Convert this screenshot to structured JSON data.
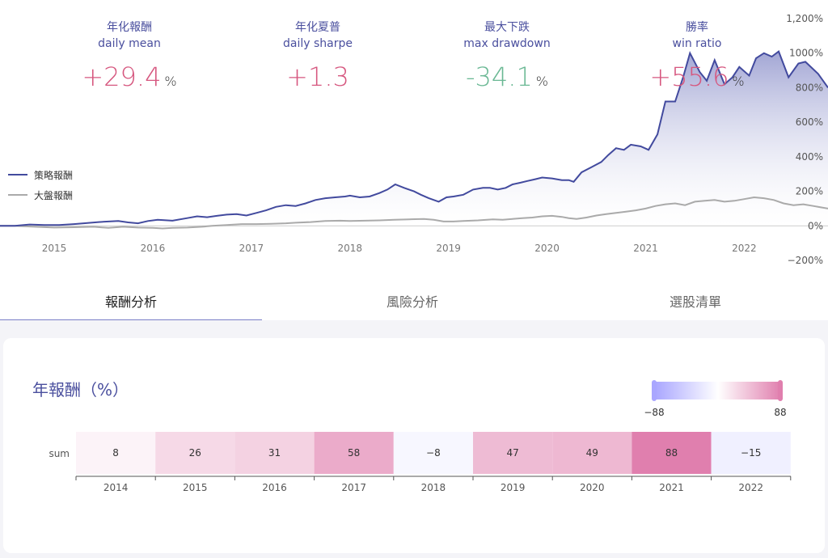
{
  "stats": [
    {
      "title": "年化報酬",
      "subtitle": "daily mean",
      "value": "+29.4",
      "unit": "%",
      "color": "#d6577f"
    },
    {
      "title": "年化夏普",
      "subtitle": "daily sharpe",
      "value": "+1.3",
      "unit": "",
      "color": "#d6577f"
    },
    {
      "title": "最大下跌",
      "subtitle": "max drawdown",
      "value": "-34.1",
      "unit": "%",
      "color": "#6ab894"
    },
    {
      "title": "勝率",
      "subtitle": "win ratio",
      "value": "+55.6",
      "unit": "%",
      "color": "#d6577f"
    }
  ],
  "tabs": [
    {
      "label": "報酬分析",
      "active": true
    },
    {
      "label": "風險分析",
      "active": false
    },
    {
      "label": "選股清單",
      "active": false
    }
  ],
  "heatmap_title": "年報酬（%）",
  "chart_data": [
    {
      "type": "line",
      "legend": [
        "策略報酬",
        "大盤報酬"
      ],
      "legend_position": "left",
      "y_ticks": [
        "1,200%",
        "1000%",
        "800%",
        "600%",
        "400%",
        "200%",
        "0%",
        "−200%"
      ],
      "x_ticks": [
        "2015",
        "2016",
        "2017",
        "2018",
        "2019",
        "2020",
        "2021",
        "2022"
      ],
      "ylim": [
        -200,
        1200
      ],
      "xlim": [
        2014.45,
        2022.85
      ],
      "series": [
        {
          "name": "策略報酬",
          "color": "#424a9e",
          "x": [
            2014.45,
            2014.6,
            2014.75,
            2014.9,
            2015.05,
            2015.2,
            2015.3,
            2015.45,
            2015.55,
            2015.65,
            2015.75,
            2015.85,
            2015.95,
            2016.05,
            2016.2,
            2016.35,
            2016.45,
            2016.55,
            2016.65,
            2016.75,
            2016.85,
            2016.95,
            2017.05,
            2017.15,
            2017.25,
            2017.35,
            2017.45,
            2017.55,
            2017.65,
            2017.75,
            2017.85,
            2017.95,
            2018.0,
            2018.1,
            2018.2,
            2018.3,
            2018.38,
            2018.46,
            2018.55,
            2018.65,
            2018.72,
            2018.8,
            2018.9,
            2018.98,
            2019.05,
            2019.15,
            2019.25,
            2019.35,
            2019.42,
            2019.5,
            2019.58,
            2019.65,
            2019.73,
            2019.8,
            2019.88,
            2019.95,
            2020.05,
            2020.15,
            2020.22,
            2020.27,
            2020.35,
            2020.45,
            2020.55,
            2020.62,
            2020.7,
            2020.78,
            2020.85,
            2020.95,
            2021.03,
            2021.12,
            2021.2,
            2021.3,
            2021.38,
            2021.45,
            2021.55,
            2021.62,
            2021.7,
            2021.8,
            2021.88,
            2021.95,
            2022.05,
            2022.12,
            2022.2,
            2022.28,
            2022.35,
            2022.45,
            2022.55,
            2022.62,
            2022.75,
            2022.85
          ],
          "y": [
            0,
            0,
            8,
            5,
            5,
            10,
            15,
            22,
            25,
            28,
            20,
            15,
            28,
            35,
            30,
            45,
            55,
            50,
            58,
            65,
            68,
            60,
            75,
            90,
            110,
            120,
            115,
            130,
            150,
            160,
            165,
            170,
            175,
            165,
            170,
            190,
            210,
            240,
            220,
            200,
            180,
            160,
            140,
            165,
            170,
            180,
            210,
            220,
            220,
            210,
            220,
            240,
            250,
            260,
            270,
            280,
            275,
            265,
            265,
            255,
            310,
            340,
            370,
            410,
            450,
            440,
            470,
            460,
            440,
            530,
            720,
            720,
            860,
            1000,
            890,
            840,
            960,
            820,
            860,
            920,
            870,
            970,
            1000,
            980,
            1010,
            860,
            940,
            950,
            880,
            800
          ]
        },
        {
          "name": "大盤報酬",
          "color": "#aaaaaa",
          "x": [
            2014.45,
            2014.6,
            2014.8,
            2015.0,
            2015.2,
            2015.4,
            2015.55,
            2015.7,
            2015.85,
            2016.0,
            2016.1,
            2016.2,
            2016.35,
            2016.5,
            2016.6,
            2016.75,
            2016.9,
            2017.05,
            2017.2,
            2017.35,
            2017.45,
            2017.6,
            2017.75,
            2017.9,
            2018.0,
            2018.15,
            2018.3,
            2018.45,
            2018.6,
            2018.75,
            2018.85,
            2018.95,
            2019.05,
            2019.15,
            2019.3,
            2019.45,
            2019.55,
            2019.65,
            2019.75,
            2019.85,
            2019.95,
            2020.05,
            2020.15,
            2020.22,
            2020.3,
            2020.4,
            2020.5,
            2020.6,
            2020.7,
            2020.8,
            2020.9,
            2021.0,
            2021.1,
            2021.2,
            2021.3,
            2021.4,
            2021.5,
            2021.6,
            2021.7,
            2021.8,
            2021.9,
            2022.0,
            2022.1,
            2022.2,
            2022.3,
            2022.4,
            2022.5,
            2022.6,
            2022.7,
            2022.85
          ],
          "y": [
            0,
            0,
            -5,
            -10,
            -8,
            -5,
            -12,
            -5,
            -10,
            -12,
            -15,
            -12,
            -10,
            -5,
            0,
            5,
            10,
            10,
            12,
            15,
            18,
            22,
            28,
            30,
            28,
            30,
            32,
            35,
            38,
            40,
            35,
            25,
            25,
            28,
            32,
            38,
            35,
            40,
            45,
            48,
            55,
            58,
            52,
            45,
            40,
            48,
            60,
            68,
            75,
            82,
            90,
            100,
            115,
            125,
            130,
            120,
            140,
            145,
            150,
            140,
            145,
            155,
            165,
            160,
            150,
            130,
            120,
            125,
            115,
            100
          ]
        }
      ]
    },
    {
      "type": "heatmap",
      "row_labels": [
        "sum"
      ],
      "categories": [
        "2014",
        "2015",
        "2016",
        "2017",
        "2018",
        "2019",
        "2020",
        "2021",
        "2022"
      ],
      "values": [
        8,
        26,
        31,
        58,
        -8,
        47,
        49,
        88,
        -15
      ],
      "range": [
        -88,
        88
      ],
      "range_labels": [
        "−88",
        "88"
      ],
      "colors": {
        "negative": "#a9a6ff",
        "positive": "#e07fae",
        "neutral": "#ffffff"
      }
    }
  ]
}
